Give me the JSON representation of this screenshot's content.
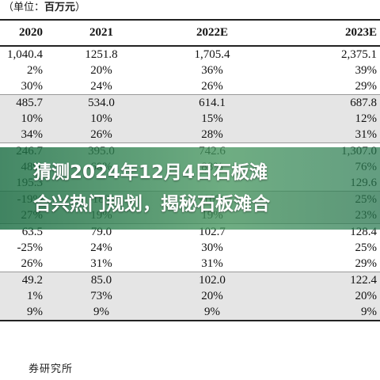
{
  "unit_note": {
    "prefix": "（单位：",
    "unit": "百万元",
    "suffix": "）"
  },
  "columns": [
    "2020",
    "2021",
    "2022E",
    "2023E"
  ],
  "rows": [
    {
      "shade": false,
      "end": false,
      "cells": [
        "1,040.4",
        "1251.8",
        "1,705.4",
        "2,375.1"
      ]
    },
    {
      "shade": false,
      "end": false,
      "cells": [
        "2%",
        "20%",
        "36%",
        "39%"
      ]
    },
    {
      "shade": false,
      "end": true,
      "cells": [
        "30%",
        "24%",
        "26%",
        "29%"
      ]
    },
    {
      "shade": true,
      "end": false,
      "cells": [
        "485.7",
        "534.0",
        "614.1",
        "687.8"
      ]
    },
    {
      "shade": true,
      "end": false,
      "cells": [
        "10%",
        "10%",
        "15%",
        "12%"
      ]
    },
    {
      "shade": true,
      "end": true,
      "cells": [
        "34%",
        "26%",
        "28%",
        "31%"
      ]
    },
    {
      "shade": false,
      "end": false,
      "cells": [
        "246.7",
        "395.0",
        "742.6",
        "1,307.0"
      ]
    },
    {
      "shade": false,
      "end": false,
      "cells": [
        "48%",
        "60%",
        "88%",
        "76%"
      ]
    },
    {
      "shade": false,
      "end": true,
      "cells": [
        "195.3",
        "",
        "",
        "129.6"
      ]
    },
    {
      "shade": true,
      "end": false,
      "cells": [
        "-19%",
        "-18%",
        "-10%",
        "25%"
      ]
    },
    {
      "shade": true,
      "end": true,
      "cells": [
        "27%",
        "19%",
        "19%",
        "23%"
      ]
    },
    {
      "shade": false,
      "end": false,
      "cells": [
        "63.5",
        "79.0",
        "102.7",
        "128.4"
      ]
    },
    {
      "shade": false,
      "end": false,
      "cells": [
        "-25%",
        "24%",
        "30%",
        "25%"
      ]
    },
    {
      "shade": false,
      "end": true,
      "cells": [
        "26%",
        "31%",
        "31%",
        "29%"
      ]
    },
    {
      "shade": true,
      "end": false,
      "cells": [
        "49.2",
        "85.0",
        "102.0",
        "122.4"
      ]
    },
    {
      "shade": true,
      "end": false,
      "cells": [
        "1%",
        "73%",
        "20%",
        "20%"
      ]
    },
    {
      "shade": true,
      "end": true,
      "cells": [
        "9%",
        "9%",
        "9%",
        "9%"
      ]
    }
  ],
  "source": "券研究所",
  "overlay": {
    "line1": "猜测2024年12月4日石板滩",
    "line2": "合兴热门规划，揭秘石板滩合"
  }
}
